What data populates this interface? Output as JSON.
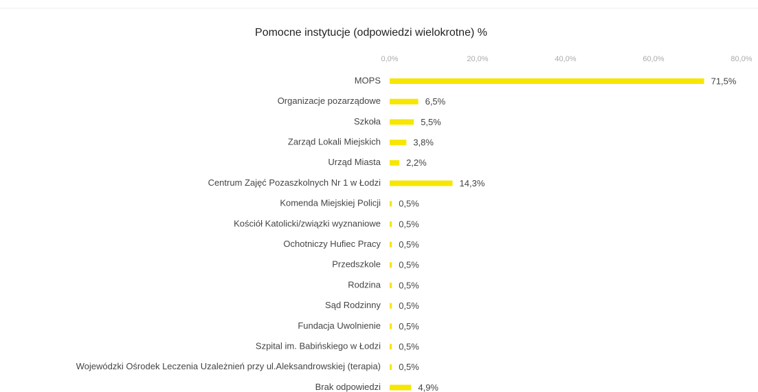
{
  "chart_data": {
    "type": "hbar",
    "title": "Pomocne instytucje (odpowiedzi wielokrotne) %",
    "categories": [
      "MOPS",
      "Organizacje pozarządowe",
      "Szkoła",
      "Zarząd Lokali Miejskich",
      "Urząd Miasta",
      "Centrum Zajęć Pozaszkolnych Nr 1 w Łodzi",
      "Komenda Miejskiej Policji",
      "Kościół Katolicki/związki wyznaniowe",
      "Ochotniczy Hufiec Pracy",
      "Przedszkole",
      "Rodzina",
      "Sąd Rodzinny",
      "Fundacja Uwolnienie",
      "Szpital im. Babińskiego w Łodzi",
      "Wojewódzki Ośrodek Leczenia Uzależnień przy ul.Aleksandrowskiej (terapia)",
      "Brak odpowiedzi"
    ],
    "values": [
      71.5,
      6.5,
      5.5,
      3.8,
      2.2,
      14.3,
      0.5,
      0.5,
      0.5,
      0.5,
      0.5,
      0.5,
      0.5,
      0.5,
      0.5,
      4.9
    ],
    "value_labels": [
      "71,5%",
      "6,5%",
      "5,5%",
      "3,8%",
      "2,2%",
      "14,3%",
      "0,5%",
      "0,5%",
      "0,5%",
      "0,5%",
      "0,5%",
      "0,5%",
      "0,5%",
      "0,5%",
      "0,5%",
      "4,9%"
    ],
    "color": "#f7e600",
    "xlim": [
      0,
      80
    ],
    "xticks": [
      {
        "value": 0,
        "label": "0,0%"
      },
      {
        "value": 20,
        "label": "20,0%"
      },
      {
        "value": 40,
        "label": "40,0%"
      },
      {
        "value": 60,
        "label": "60,0%"
      },
      {
        "value": 80,
        "label": "80,0%"
      }
    ],
    "grid": false
  }
}
